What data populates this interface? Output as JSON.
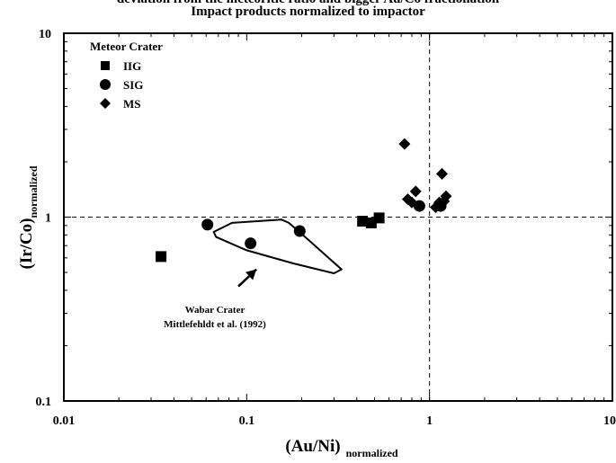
{
  "header_clipped": "deviation from the meteoritic ratio and bigger Au/Co fractionation",
  "chart_data": {
    "type": "scatter",
    "title": "Impact products normalized to impactor",
    "xlabel": "(Au/Ni)",
    "xlabel_sub": "normalized",
    "ylabel": "(Ir/Co)",
    "ylabel_sub": "normalized",
    "xscale": "log",
    "yscale": "log",
    "xlim": [
      0.01,
      10
    ],
    "ylim": [
      0.1,
      10
    ],
    "xticks": [
      "0.01",
      "0.1",
      "1",
      "10"
    ],
    "yticks": [
      "0.1",
      "1",
      "10"
    ],
    "reference_lines": {
      "x": 1,
      "y": 1,
      "style": "dashed"
    },
    "legend": {
      "title": "Meteor Crater",
      "position": "top-left"
    },
    "series": [
      {
        "name": "IIG",
        "marker": "square",
        "points": [
          [
            0.034,
            0.61
          ],
          [
            0.43,
            0.95
          ],
          [
            0.48,
            0.93
          ],
          [
            0.53,
            0.99
          ]
        ]
      },
      {
        "name": "SIG",
        "marker": "circle",
        "points": [
          [
            0.061,
            0.91
          ],
          [
            0.105,
            0.72
          ],
          [
            0.195,
            0.84
          ],
          [
            0.88,
            1.15
          ],
          [
            1.15,
            1.15
          ]
        ]
      },
      {
        "name": "MS",
        "marker": "diamond",
        "points": [
          [
            0.73,
            2.5
          ],
          [
            0.76,
            1.25
          ],
          [
            0.8,
            1.2
          ],
          [
            0.84,
            1.38
          ],
          [
            1.08,
            1.13
          ],
          [
            1.13,
            1.2
          ],
          [
            1.17,
            1.72
          ],
          [
            1.2,
            1.22
          ],
          [
            1.23,
            1.3
          ]
        ]
      }
    ],
    "region": {
      "label_lines": [
        "Wabar Crater",
        "Mittlefehldt et al. (1992)"
      ],
      "outline": [
        [
          0.066,
          0.83
        ],
        [
          0.083,
          0.93
        ],
        [
          0.155,
          0.97
        ],
        [
          0.17,
          0.93
        ],
        [
          0.215,
          0.76
        ],
        [
          0.33,
          0.52
        ],
        [
          0.3,
          0.495
        ],
        [
          0.18,
          0.56
        ],
        [
          0.1,
          0.66
        ],
        [
          0.068,
          0.78
        ]
      ],
      "arrow_from": [
        0.09,
        0.42
      ],
      "arrow_to": [
        0.113,
        0.52
      ]
    }
  }
}
